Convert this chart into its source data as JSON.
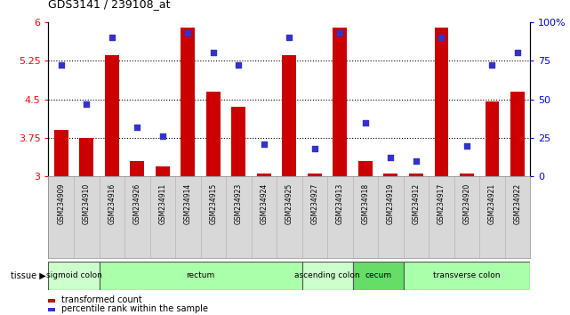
{
  "title": "GDS3141 / 239108_at",
  "samples": [
    "GSM234909",
    "GSM234910",
    "GSM234916",
    "GSM234926",
    "GSM234911",
    "GSM234914",
    "GSM234915",
    "GSM234923",
    "GSM234924",
    "GSM234925",
    "GSM234927",
    "GSM234913",
    "GSM234918",
    "GSM234919",
    "GSM234912",
    "GSM234917",
    "GSM234920",
    "GSM234921",
    "GSM234922"
  ],
  "red_values": [
    3.9,
    3.75,
    5.35,
    3.3,
    3.2,
    5.9,
    4.65,
    4.35,
    3.05,
    5.35,
    3.05,
    5.9,
    3.3,
    3.05,
    3.05,
    5.9,
    3.05,
    4.45,
    4.65
  ],
  "blue_values": [
    72,
    47,
    90,
    32,
    26,
    93,
    80,
    72,
    21,
    90,
    18,
    93,
    35,
    12,
    10,
    90,
    20,
    72,
    80
  ],
  "tissue_groups": [
    {
      "label": "sigmoid colon",
      "start": 0,
      "end": 1,
      "color": "#ccffcc"
    },
    {
      "label": "rectum",
      "start": 2,
      "end": 9,
      "color": "#aaffaa"
    },
    {
      "label": "ascending colon",
      "start": 10,
      "end": 11,
      "color": "#ccffcc"
    },
    {
      "label": "cecum",
      "start": 12,
      "end": 13,
      "color": "#66dd66"
    },
    {
      "label": "transverse colon",
      "start": 14,
      "end": 18,
      "color": "#aaffaa"
    }
  ],
  "ylim_left": [
    3.0,
    6.0
  ],
  "ylim_right": [
    0,
    100
  ],
  "yticks_left": [
    3.0,
    3.75,
    4.5,
    5.25,
    6.0
  ],
  "ytick_labels_left": [
    "3",
    "3.75",
    "4.5",
    "5.25",
    "6"
  ],
  "yticks_right": [
    0,
    25,
    50,
    75,
    100
  ],
  "ytick_labels_right": [
    "0",
    "25",
    "50",
    "75",
    "100%"
  ],
  "hlines": [
    3.75,
    4.5,
    5.25
  ],
  "bar_color": "#cc0000",
  "dot_color": "#3333cc",
  "bar_width": 0.55,
  "plot_bg": "#ffffff",
  "tick_bg": "#d8d8d8"
}
